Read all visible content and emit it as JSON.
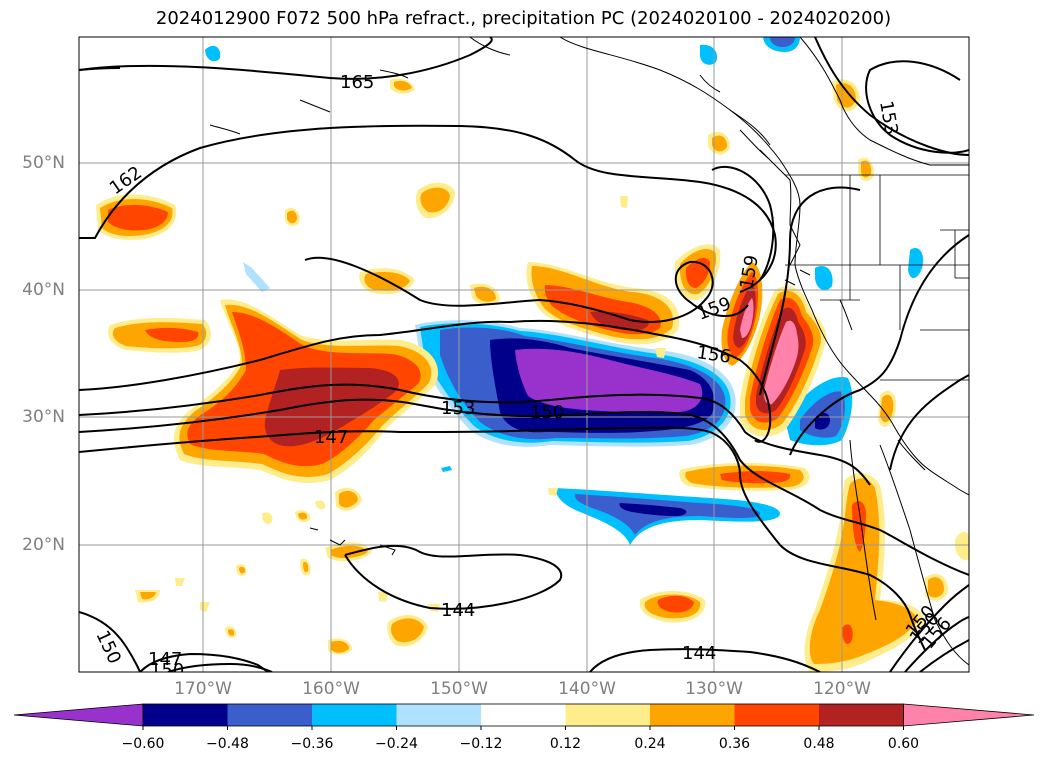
{
  "title": "2024012900 F072 500 hPa refract., precipitation PC (2024020100 - 2024020200)",
  "lat_labels": [
    "50°N",
    "40°N",
    "30°N",
    "20°N"
  ],
  "lon_labels": [
    "170°W",
    "160°W",
    "150°W",
    "140°W",
    "130°W",
    "120°W"
  ],
  "contour_labels": [
    "165",
    "162",
    "153",
    "159",
    "159",
    "156",
    "153",
    "150",
    "147",
    "144",
    "144",
    "150",
    "147",
    "150",
    "150",
    "156",
    "150"
  ],
  "colorbar": {
    "ticks": [
      "−0.60",
      "−0.48",
      "−0.36",
      "−0.24",
      "−0.12",
      "0.12",
      "0.24",
      "0.36",
      "0.48",
      "0.60"
    ],
    "colors": [
      "#9932cc",
      "#00008b",
      "#3a5fcd",
      "#00bfff",
      "#b0e2ff",
      "#ffffff",
      "#ffec8b",
      "#ffa500",
      "#ff4500",
      "#b22222",
      "#ff82ab"
    ]
  },
  "colors": {
    "frame": "#000000",
    "grid": "#999999",
    "tick_text": "#7f7f7f"
  }
}
